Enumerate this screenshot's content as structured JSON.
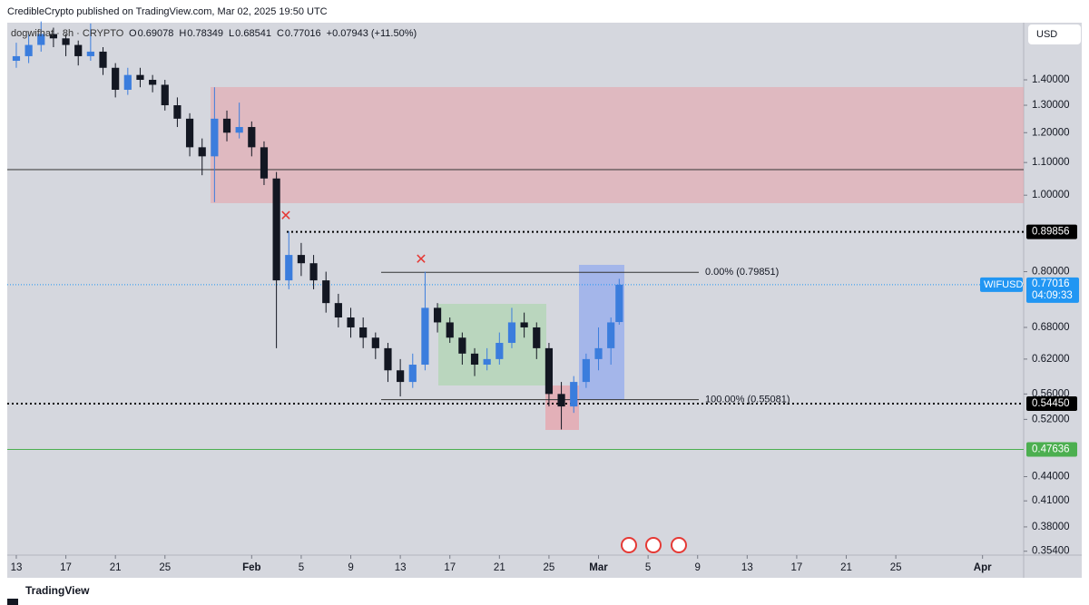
{
  "header": "CredibleCrypto published on TradingView.com, Mar 02, 2025 19:50 UTC",
  "footer": "TradingView",
  "chart_data": {
    "type": "candlestick",
    "symbol": "dogwifhat · 8h · CRYPTO",
    "ohlc_legend": [
      {
        "key": "O",
        "value": 0.69078
      },
      {
        "key": "H",
        "value": 0.78349
      },
      {
        "key": "L",
        "value": 0.68541
      },
      {
        "key": "C",
        "value": 0.77016
      }
    ],
    "change": "+0.07943 (+11.50%)",
    "currency": "USD",
    "x": [
      0,
      1,
      2,
      3,
      4,
      5,
      6,
      7,
      8,
      9,
      10,
      11,
      12,
      13,
      14,
      15,
      16,
      17,
      18,
      19,
      20,
      21,
      22,
      23,
      24,
      25,
      26,
      27,
      28,
      29,
      30,
      31,
      32,
      33,
      34,
      35,
      36,
      37,
      38,
      39,
      40,
      41,
      42,
      43,
      44,
      45,
      46,
      47,
      48,
      48.67
    ],
    "open": [
      1.48,
      1.5,
      1.55,
      1.6,
      1.58,
      1.55,
      1.5,
      1.52,
      1.45,
      1.36,
      1.42,
      1.4,
      1.38,
      1.3,
      1.25,
      1.15,
      1.12,
      1.25,
      1.2,
      1.22,
      1.15,
      1.05,
      0.78,
      0.84,
      0.82,
      0.78,
      0.73,
      0.7,
      0.68,
      0.66,
      0.64,
      0.6,
      0.58,
      0.61,
      0.72,
      0.69,
      0.66,
      0.63,
      0.61,
      0.62,
      0.65,
      0.69,
      0.68,
      0.64,
      0.56,
      0.54,
      0.58,
      0.62,
      0.64,
      0.69078
    ],
    "high": [
      1.56,
      1.6,
      1.66,
      1.63,
      1.6,
      1.57,
      1.65,
      1.54,
      1.47,
      1.45,
      1.45,
      1.42,
      1.4,
      1.33,
      1.27,
      1.18,
      1.37,
      1.28,
      1.31,
      1.24,
      1.17,
      1.07,
      0.9,
      0.87,
      0.84,
      0.8,
      0.75,
      0.72,
      0.7,
      0.67,
      0.65,
      0.62,
      0.63,
      0.8,
      0.73,
      0.7,
      0.67,
      0.64,
      0.64,
      0.67,
      0.72,
      0.71,
      0.69,
      0.65,
      0.58,
      0.59,
      0.63,
      0.68,
      0.7,
      0.78349
    ],
    "low": [
      1.45,
      1.47,
      1.52,
      1.54,
      1.5,
      1.46,
      1.48,
      1.42,
      1.33,
      1.34,
      1.37,
      1.35,
      1.28,
      1.22,
      1.12,
      1.06,
      0.98,
      1.17,
      1.18,
      1.12,
      1.03,
      0.64,
      0.76,
      0.79,
      0.76,
      0.71,
      0.68,
      0.66,
      0.64,
      0.62,
      0.58,
      0.556,
      0.57,
      0.6,
      0.67,
      0.65,
      0.61,
      0.59,
      0.6,
      0.61,
      0.64,
      0.66,
      0.62,
      0.54,
      0.505,
      0.53,
      0.57,
      0.6,
      0.61,
      0.68541
    ],
    "close": [
      1.5,
      1.55,
      1.6,
      1.58,
      1.55,
      1.5,
      1.52,
      1.45,
      1.36,
      1.42,
      1.4,
      1.38,
      1.3,
      1.25,
      1.15,
      1.12,
      1.25,
      1.2,
      1.22,
      1.15,
      1.05,
      0.78,
      0.84,
      0.82,
      0.78,
      0.73,
      0.7,
      0.68,
      0.66,
      0.64,
      0.6,
      0.58,
      0.61,
      0.72,
      0.69,
      0.66,
      0.63,
      0.61,
      0.62,
      0.65,
      0.69,
      0.68,
      0.64,
      0.56,
      0.54,
      0.58,
      0.62,
      0.64,
      0.69,
      0.77016
    ],
    "up_color": "#3b7ddd",
    "down_color": "#131722",
    "xlim": [
      -0.73,
      81.32
    ],
    "xticks": [
      {
        "value": 0,
        "label": "13"
      },
      {
        "value": 4,
        "label": "17"
      },
      {
        "value": 8,
        "label": "21"
      },
      {
        "value": 12,
        "label": "25"
      },
      {
        "value": 19,
        "label": "Feb"
      },
      {
        "value": 23,
        "label": "5"
      },
      {
        "value": 27,
        "label": "9"
      },
      {
        "value": 31,
        "label": "13"
      },
      {
        "value": 35,
        "label": "17"
      },
      {
        "value": 39,
        "label": "21"
      },
      {
        "value": 43,
        "label": "25"
      },
      {
        "value": 47,
        "label": "Mar"
      },
      {
        "value": 51,
        "label": "5"
      },
      {
        "value": 55,
        "label": "9"
      },
      {
        "value": 59,
        "label": "13"
      },
      {
        "value": 63,
        "label": "17"
      },
      {
        "value": 67,
        "label": "21"
      },
      {
        "value": 71,
        "label": "25"
      },
      {
        "value": 78,
        "label": "Apr"
      }
    ],
    "ylim": [
      0.35,
      1.654
    ],
    "log_scale": true,
    "yticks": [
      {
        "value": 1.4,
        "label": "1.40000"
      },
      {
        "value": 1.3,
        "label": "1.30000"
      },
      {
        "value": 1.2,
        "label": "1.20000"
      },
      {
        "value": 1.1,
        "label": "1.10000"
      },
      {
        "value": 1.0,
        "label": "1.00000"
      },
      {
        "value": 0.8,
        "label": "0.80000"
      },
      {
        "value": 0.68,
        "label": "0.68000"
      },
      {
        "value": 0.62,
        "label": "0.62000"
      },
      {
        "value": 0.56,
        "label": "0.56000"
      },
      {
        "value": 0.52,
        "label": "0.52000"
      },
      {
        "value": 0.44,
        "label": "0.44000"
      },
      {
        "value": 0.41,
        "label": "0.41000"
      },
      {
        "value": 0.38,
        "label": "0.38000"
      },
      {
        "value": 0.354,
        "label": "0.35400"
      }
    ],
    "price_lines": [
      {
        "value": 0.89856,
        "label": "0.89856",
        "color": "#000000"
      },
      {
        "value": 0.5445,
        "label": "0.54450",
        "color": "#000000"
      },
      {
        "value": 0.47636,
        "label": "0.47636",
        "color": "#4caf50"
      }
    ],
    "fib_levels": [
      {
        "value": 0.79851,
        "label": "0.00% (0.79851)"
      },
      {
        "value": 0.55081,
        "label": "100.00% (0.55081)"
      }
    ],
    "last_price": {
      "symbol": "WIFUSD",
      "value": 0.77016,
      "label": "0.77016",
      "countdown": "04:09:33",
      "color": "#2196f3"
    }
  }
}
